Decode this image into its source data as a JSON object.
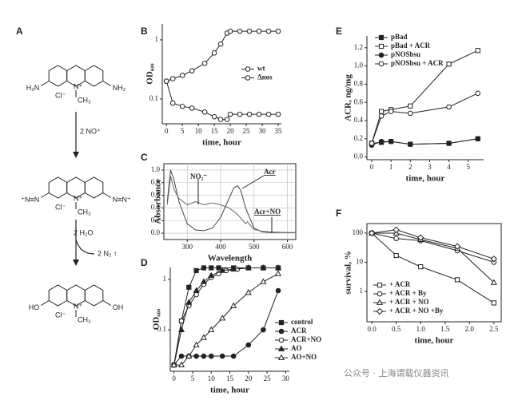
{
  "panel_a": {
    "label": "A",
    "molecules": [
      {
        "left": "H₂N",
        "right": "NH₂",
        "counterion": "Cl⁻",
        "ring_n": "N⁺",
        "methyl": "CH₃"
      },
      {
        "left": "⁺N≡N",
        "right": "N≡N⁺",
        "counterion": "Cl⁻",
        "ring_n": "N⁺",
        "methyl": "CH₃"
      },
      {
        "left": "HO",
        "right": "OH",
        "counterion": "Cl⁻",
        "ring_n": "N⁺",
        "methyl": "CH₃"
      }
    ],
    "steps": [
      {
        "reagent": "2 NO⁺"
      },
      {
        "reagent": "2 H₂O",
        "product": "2 N₂ ↑"
      }
    ]
  },
  "chart_data": [
    {
      "type": "line",
      "label": "B",
      "xlabel": "time, hour",
      "ylabel": "OD₆₀₀",
      "ylog": true,
      "xlim": [
        -1.3,
        36
      ],
      "ylim": [
        0.038,
        1.86
      ],
      "xticks": [
        0,
        5,
        10,
        15,
        20,
        25,
        30,
        35
      ],
      "yticks": [
        0.1,
        1
      ],
      "legend": "center right",
      "series": [
        {
          "name": "wt",
          "color": "#222",
          "marker": "circle",
          "filled": false,
          "x": [
            0,
            2,
            5,
            8,
            12,
            15,
            17,
            19,
            20,
            23,
            26,
            29,
            32,
            35
          ],
          "values": [
            0.2,
            0.22,
            0.25,
            0.3,
            0.4,
            0.6,
            0.85,
            1.3,
            1.4,
            1.4,
            1.4,
            1.4,
            1.4,
            1.4
          ]
        },
        {
          "name": "Δnos",
          "color": "#222",
          "marker": "circle",
          "filled": false,
          "x": [
            0,
            2,
            5,
            8,
            12,
            15,
            17,
            19,
            20,
            23,
            26,
            29,
            32,
            35
          ],
          "values": [
            0.2,
            0.085,
            0.075,
            0.07,
            0.06,
            0.05,
            0.045,
            0.045,
            0.055,
            0.055,
            0.055,
            0.055,
            0.055,
            0.055
          ]
        }
      ]
    },
    {
      "type": "line",
      "label": "C",
      "xlabel": "Wavelength",
      "ylabel": "Absorbance",
      "grid": true,
      "frame": true,
      "xlim": [
        230,
        625
      ],
      "ylim": [
        -0.1,
        1.1
      ],
      "xticks": [
        300,
        400,
        500,
        600
      ],
      "yticks": [
        {
          "value": 0,
          "label": "0.0"
        },
        0.2,
        0.4,
        0.6,
        0.8,
        {
          "value": 1,
          "label": "1.0"
        }
      ],
      "annotations": [
        "NO₂⁻",
        "Acr",
        "Acr+NO"
      ],
      "series": [
        {
          "color": "#444",
          "marker": "none",
          "x": [
            240,
            250,
            260,
            275,
            300,
            325,
            350,
            375,
            400,
            425,
            440,
            450,
            460,
            475,
            500,
            525,
            550,
            600,
            625
          ],
          "values": [
            0.5,
            1.0,
            0.85,
            0.5,
            0.15,
            0.05,
            0.04,
            0.08,
            0.25,
            0.55,
            0.72,
            0.75,
            0.68,
            0.4,
            0.08,
            0.02,
            0.01,
            0.01,
            0.01
          ]
        },
        {
          "color": "#666",
          "marker": "none",
          "x": [
            240,
            250,
            260,
            275,
            300,
            325,
            350,
            375,
            400,
            425,
            450,
            475,
            480,
            500,
            525,
            550,
            600,
            625
          ],
          "values": [
            0.45,
            0.9,
            0.7,
            0.55,
            0.45,
            0.5,
            0.45,
            0.48,
            0.45,
            0.4,
            0.3,
            0.15,
            0.18,
            0.06,
            0.03,
            0.02,
            0.01,
            0.01
          ]
        }
      ]
    },
    {
      "type": "line",
      "label": "D",
      "xlabel": "time, hour",
      "ylabel": "OD₆₀₀",
      "ylog": true,
      "xlim": [
        -1,
        31
      ],
      "ylim": [
        0.015,
        1.73
      ],
      "xticks": [
        0,
        5,
        10,
        15,
        20,
        25,
        30
      ],
      "yticks": [
        0.1,
        1
      ],
      "legend": "lower right",
      "series": [
        {
          "name": "control",
          "color": "#222",
          "marker": "square",
          "filled": true,
          "x": [
            0,
            2,
            4,
            6,
            8,
            10,
            12,
            16,
            20,
            24,
            28
          ],
          "values": [
            0.02,
            0.15,
            0.7,
            1.5,
            1.7,
            1.7,
            1.7,
            1.7,
            1.7,
            1.7,
            1.7
          ]
        },
        {
          "name": "ACR",
          "color": "#222",
          "marker": "circle",
          "filled": true,
          "x": [
            0,
            2,
            4,
            6,
            8,
            10,
            13,
            16,
            20,
            24,
            28
          ],
          "values": [
            0.02,
            0.03,
            0.03,
            0.03,
            0.03,
            0.03,
            0.03,
            0.03,
            0.05,
            0.1,
            0.6
          ]
        },
        {
          "name": "ACR+NO",
          "color": "#222",
          "marker": "circle",
          "filled": false,
          "x": [
            0,
            2,
            4,
            6,
            8,
            10,
            12,
            14,
            17,
            20,
            24,
            28
          ],
          "values": [
            0.02,
            0.15,
            0.3,
            0.5,
            0.8,
            1.1,
            1.3,
            1.5,
            1.6,
            1.7,
            1.7,
            1.7
          ]
        },
        {
          "name": "AO",
          "color": "#222",
          "marker": "triangle",
          "filled": true,
          "x": [
            0,
            2,
            4,
            6,
            8,
            10,
            13,
            16,
            20,
            24,
            28
          ],
          "values": [
            0.02,
            0.1,
            0.35,
            0.6,
            0.9,
            1.2,
            1.5,
            1.6,
            1.7,
            1.7,
            1.7
          ]
        },
        {
          "name": "AO+NO",
          "color": "#222",
          "marker": "triangle",
          "filled": false,
          "x": [
            0,
            2,
            4,
            6,
            8,
            10,
            13,
            16,
            20,
            24,
            28
          ],
          "values": [
            0.02,
            0.02,
            0.03,
            0.05,
            0.07,
            0.1,
            0.17,
            0.3,
            0.55,
            0.9,
            1.3
          ]
        }
      ]
    },
    {
      "type": "line",
      "label": "E",
      "xlabel": "time, hour",
      "ylabel": "ACR, ng/mg",
      "xlim": [
        -0.25,
        5.8
      ],
      "ylim": [
        -0.03,
        1.33
      ],
      "xticks": [
        0,
        1,
        2,
        3,
        4,
        5
      ],
      "yticks": [
        {
          "value": 0,
          "label": "0.0"
        },
        0.2,
        0.4,
        0.6,
        0.8,
        {
          "value": 1,
          "label": "1.0"
        },
        1.2
      ],
      "legend": "upper left",
      "series": [
        {
          "name": "pBad",
          "color": "#222",
          "marker": "square",
          "filled": true,
          "x": [
            0,
            0.5,
            1,
            2,
            4,
            5.5
          ],
          "values": [
            0.15,
            0.16,
            0.17,
            0.14,
            0.15,
            0.2
          ]
        },
        {
          "name": "pBad + ACR",
          "color": "#222",
          "marker": "square",
          "filled": false,
          "x": [
            0,
            0.5,
            1,
            2,
            4,
            5.5
          ],
          "values": [
            0.15,
            0.5,
            0.52,
            0.56,
            1.02,
            1.17
          ]
        },
        {
          "name": "pNOSbsu",
          "color": "#222",
          "marker": "circle",
          "filled": true,
          "x": [
            0,
            0.5,
            1,
            2,
            4,
            5.5
          ],
          "values": [
            0.13,
            0.17,
            0.17,
            0.14,
            0.15,
            0.2
          ]
        },
        {
          "name": "pNOSbsu + ACR",
          "color": "#222",
          "marker": "circle",
          "filled": false,
          "x": [
            0,
            0.5,
            1,
            2,
            4,
            5.5
          ],
          "values": [
            0.15,
            0.45,
            0.5,
            0.48,
            0.55,
            0.7
          ]
        }
      ]
    },
    {
      "type": "line",
      "label": "F",
      "xlabel": "time, hour",
      "ylabel": "survival, %",
      "ylog": true,
      "frame": true,
      "xlim": [
        -0.1,
        2.65
      ],
      "ylim": [
        0.09,
        213
      ],
      "xticks": [
        {
          "value": 0,
          "label": "0.0"
        },
        0.5,
        {
          "value": 1,
          "label": "1.0"
        },
        1.5,
        {
          "value": 2,
          "label": "2.0"
        },
        2.5
      ],
      "yticks": [
        1,
        10,
        100
      ],
      "legend": "lower left",
      "series": [
        {
          "name": "+ ACR",
          "color": "#222",
          "marker": "square",
          "filled": false,
          "x": [
            0,
            0.5,
            1,
            1.75,
            2.5
          ],
          "values": [
            100,
            17,
            7,
            2.5,
            0.4
          ]
        },
        {
          "name": "+ ACR + By",
          "color": "#222",
          "marker": "circle",
          "filled": false,
          "x": [
            0,
            0.5,
            1,
            1.75,
            2.5
          ],
          "values": [
            100,
            65,
            55,
            25,
            10
          ]
        },
        {
          "name": "+ ACR + NO",
          "color": "#222",
          "marker": "triangle",
          "filled": false,
          "x": [
            0,
            0.5,
            1,
            1.75,
            2.5
          ],
          "values": [
            100,
            100,
            60,
            30,
            2
          ]
        },
        {
          "name": "+ ACR + NO +By",
          "color": "#222",
          "marker": "diamond",
          "filled": false,
          "x": [
            0,
            0.5,
            1,
            1.75,
            2.5
          ],
          "values": [
            100,
            130,
            70,
            35,
            13
          ]
        }
      ]
    }
  ],
  "watermark": "公众号 · 上海谓载仪器资讯"
}
